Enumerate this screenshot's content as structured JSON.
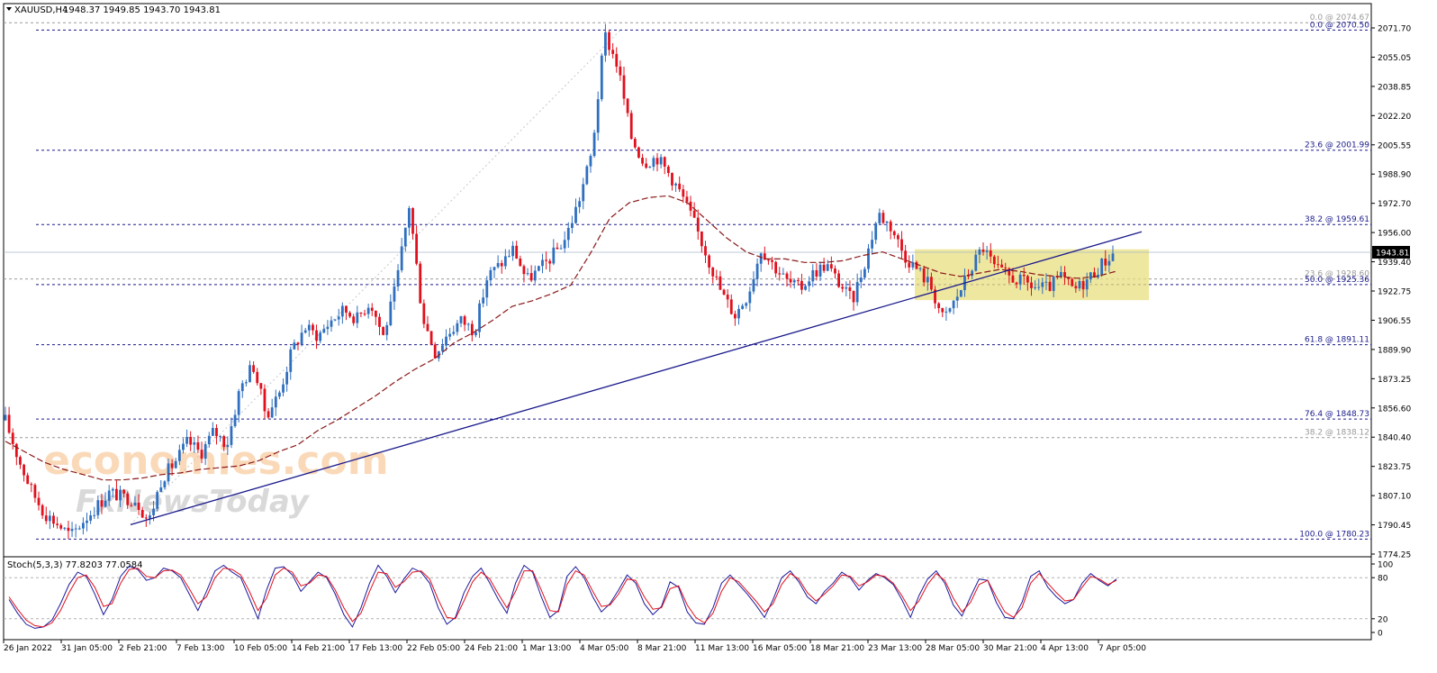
{
  "header": {
    "symbol": "XAUUSD,H4",
    "ohlc": "1948.37 1949.85 1943.70 1943.81"
  },
  "colors": {
    "bull": "#2f6fbf",
    "bear": "#e0101d",
    "ma": "#8b1a1a",
    "trendline": "#1a1a8c",
    "fib_main": "#1a1a8c",
    "fib_minor": "#9a9a9a",
    "range_box": "#e8df7f",
    "stoch_main": "#1a1a9c",
    "stoch_signal": "#e0101d"
  },
  "watermark": {
    "line1": "economies.com",
    "line2": "FxNewsToday"
  },
  "chart_data": [
    {
      "type": "line",
      "title": "XAUUSD,H4",
      "ylim": [
        1774.25,
        2076.0
      ],
      "y_ticks": [
        "2071.70",
        "2055.05",
        "2038.85",
        "2022.20",
        "2005.55",
        "1988.90",
        "1972.70",
        "1956.00",
        "1939.40",
        "1922.75",
        "1906.55",
        "1889.90",
        "1873.25",
        "1856.60",
        "1840.40",
        "1823.75",
        "1807.10",
        "1790.45",
        "1774.25"
      ],
      "x_ticks": [
        "26 Jan 2022",
        "31 Jan 05:00",
        "2 Feb 21:00",
        "7 Feb 13:00",
        "10 Feb 05:00",
        "14 Feb 21:00",
        "17 Feb 13:00",
        "22 Feb 05:00",
        "24 Feb 21:00",
        "1 Mar 13:00",
        "4 Mar 05:00",
        "8 Mar 21:00",
        "11 Mar 13:00",
        "16 Mar 05:00",
        "18 Mar 21:00",
        "23 Mar 13:00",
        "28 Mar 05:00",
        "30 Mar 21:00",
        "4 Apr 13:00",
        "7 Apr 05:00"
      ],
      "price_series": {
        "approx_closes": [
          1848,
          1826,
          1808,
          1795,
          1789,
          1782,
          1791,
          1799,
          1807,
          1804,
          1803,
          1790,
          1815,
          1824,
          1836,
          1829,
          1842,
          1834,
          1866,
          1880,
          1851,
          1863,
          1888,
          1901,
          1896,
          1905,
          1911,
          1906,
          1916,
          1896,
          1925,
          1971,
          1908,
          1886,
          1898,
          1905,
          1899,
          1930,
          1937,
          1946,
          1928,
          1934,
          1942,
          1952,
          1973,
          2000,
          2068,
          2050,
          2010,
          1995,
          1998,
          1988,
          1975,
          1958,
          1939,
          1920,
          1908,
          1920,
          1946,
          1936,
          1927,
          1923,
          1932,
          1937,
          1926,
          1916,
          1939,
          1966,
          1958,
          1942,
          1934,
          1925,
          1905,
          1918,
          1933,
          1947,
          1934,
          1930,
          1927,
          1924,
          1923,
          1930,
          1922,
          1928,
          1936,
          1943
        ]
      },
      "moving_average": {
        "approx_values": [
          1836,
          1830,
          1824,
          1820,
          1817,
          1814,
          1814,
          1815,
          1817,
          1818,
          1820,
          1821,
          1822,
          1825,
          1830,
          1834,
          1842,
          1848,
          1855,
          1862,
          1870,
          1877,
          1883,
          1892,
          1898,
          1905,
          1913,
          1916,
          1920,
          1925,
          1943,
          1963,
          1972,
          1975,
          1976,
          1972,
          1962,
          1952,
          1944,
          1940,
          1940,
          1938,
          1938,
          1939,
          1942,
          1944,
          1940,
          1936,
          1932,
          1930,
          1932,
          1934,
          1933,
          1931,
          1930,
          1929,
          1930,
          1933
        ]
      },
      "horizontal_levels": [
        {
          "label": "0.0 @ 2074.67",
          "value": 2074.67,
          "style": "minor"
        },
        {
          "label": "0.0 @ 2070.50",
          "value": 2070.5,
          "style": "main"
        },
        {
          "label": "23.6 @ 2001.99",
          "value": 2001.99,
          "style": "main"
        },
        {
          "label": "38.2 @ 1959.61",
          "value": 1959.61,
          "style": "main"
        },
        {
          "label": "23.6 @ 1928.60",
          "value": 1928.6,
          "style": "minor"
        },
        {
          "label": "50.0 @ 1925.36",
          "value": 1925.36,
          "style": "main"
        },
        {
          "label": "61.8 @ 1891.11",
          "value": 1891.11,
          "style": "main"
        },
        {
          "label": "76.4 @ 1848.73",
          "value": 1848.73,
          "style": "main"
        },
        {
          "label": "38.2 @ 1838.12",
          "value": 1838.12,
          "style": "minor"
        },
        {
          "label": "100.0 @ 1780.23",
          "value": 1780.23,
          "style": "main"
        }
      ],
      "current_price": {
        "label": "1943.81",
        "value": 1943.81
      },
      "trendline": {
        "from": 1788.5,
        "to": 1955.5
      },
      "range_box": {
        "top": 1945.5,
        "bottom": 1916.5
      }
    },
    {
      "type": "line",
      "title": "Stoch(5,3,3) 77.8203 77.0584",
      "ylim": [
        0,
        100
      ],
      "y_ticks": [
        "100",
        "80",
        "20",
        "0"
      ],
      "levels": [
        80,
        20
      ],
      "series": [
        {
          "values": [
            48,
            28,
            12,
            6,
            8,
            18,
            42,
            70,
            88,
            82,
            56,
            26,
            48,
            82,
            97,
            92,
            76,
            80,
            94,
            90,
            80,
            56,
            32,
            60,
            90,
            98,
            88,
            80,
            50,
            20,
            62,
            94,
            96,
            84,
            60,
            74,
            88,
            80,
            56,
            26,
            8,
            36,
            72,
            98,
            82,
            58,
            78,
            94,
            88,
            72,
            36,
            12,
            22,
            58,
            82,
            94,
            72,
            48,
            28,
            72,
            98,
            88,
            52,
            22,
            32,
            82,
            96,
            80,
            52,
            30,
            42,
            62,
            84,
            72,
            42,
            26,
            38,
            74,
            66,
            30,
            14,
            12,
            36,
            72,
            84,
            70,
            56,
            40,
            22,
            48,
            80,
            90,
            74,
            52,
            42,
            60,
            72,
            88,
            80,
            62,
            76,
            86,
            80,
            70,
            48,
            22,
            54,
            78,
            90,
            72,
            40,
            24,
            52,
            78,
            76,
            44,
            22,
            20,
            44,
            82,
            90,
            66,
            52,
            42,
            48,
            72,
            86,
            76,
            68,
            78
          ]
        },
        {
          "values": [
            52,
            34,
            18,
            10,
            8,
            14,
            32,
            58,
            80,
            84,
            66,
            38,
            42,
            72,
            92,
            94,
            82,
            80,
            90,
            91,
            84,
            64,
            42,
            52,
            80,
            94,
            92,
            84,
            60,
            32,
            50,
            84,
            94,
            88,
            68,
            72,
            84,
            82,
            62,
            36,
            16,
            28,
            60,
            88,
            86,
            66,
            74,
            88,
            90,
            78,
            48,
            22,
            20,
            46,
            74,
            88,
            78,
            56,
            36,
            60,
            90,
            90,
            62,
            32,
            30,
            70,
            90,
            84,
            60,
            38,
            40,
            56,
            78,
            76,
            52,
            34,
            36,
            64,
            68,
            40,
            22,
            14,
            28,
            60,
            80,
            74,
            60,
            46,
            30,
            42,
            70,
            86,
            78,
            58,
            46,
            56,
            68,
            84,
            82,
            68,
            74,
            84,
            82,
            72,
            54,
            32,
            46,
            70,
            86,
            76,
            50,
            30,
            44,
            70,
            76,
            52,
            30,
            22,
            36,
            72,
            86,
            72,
            58,
            46,
            48,
            66,
            82,
            78,
            70,
            76
          ]
        }
      ]
    }
  ]
}
